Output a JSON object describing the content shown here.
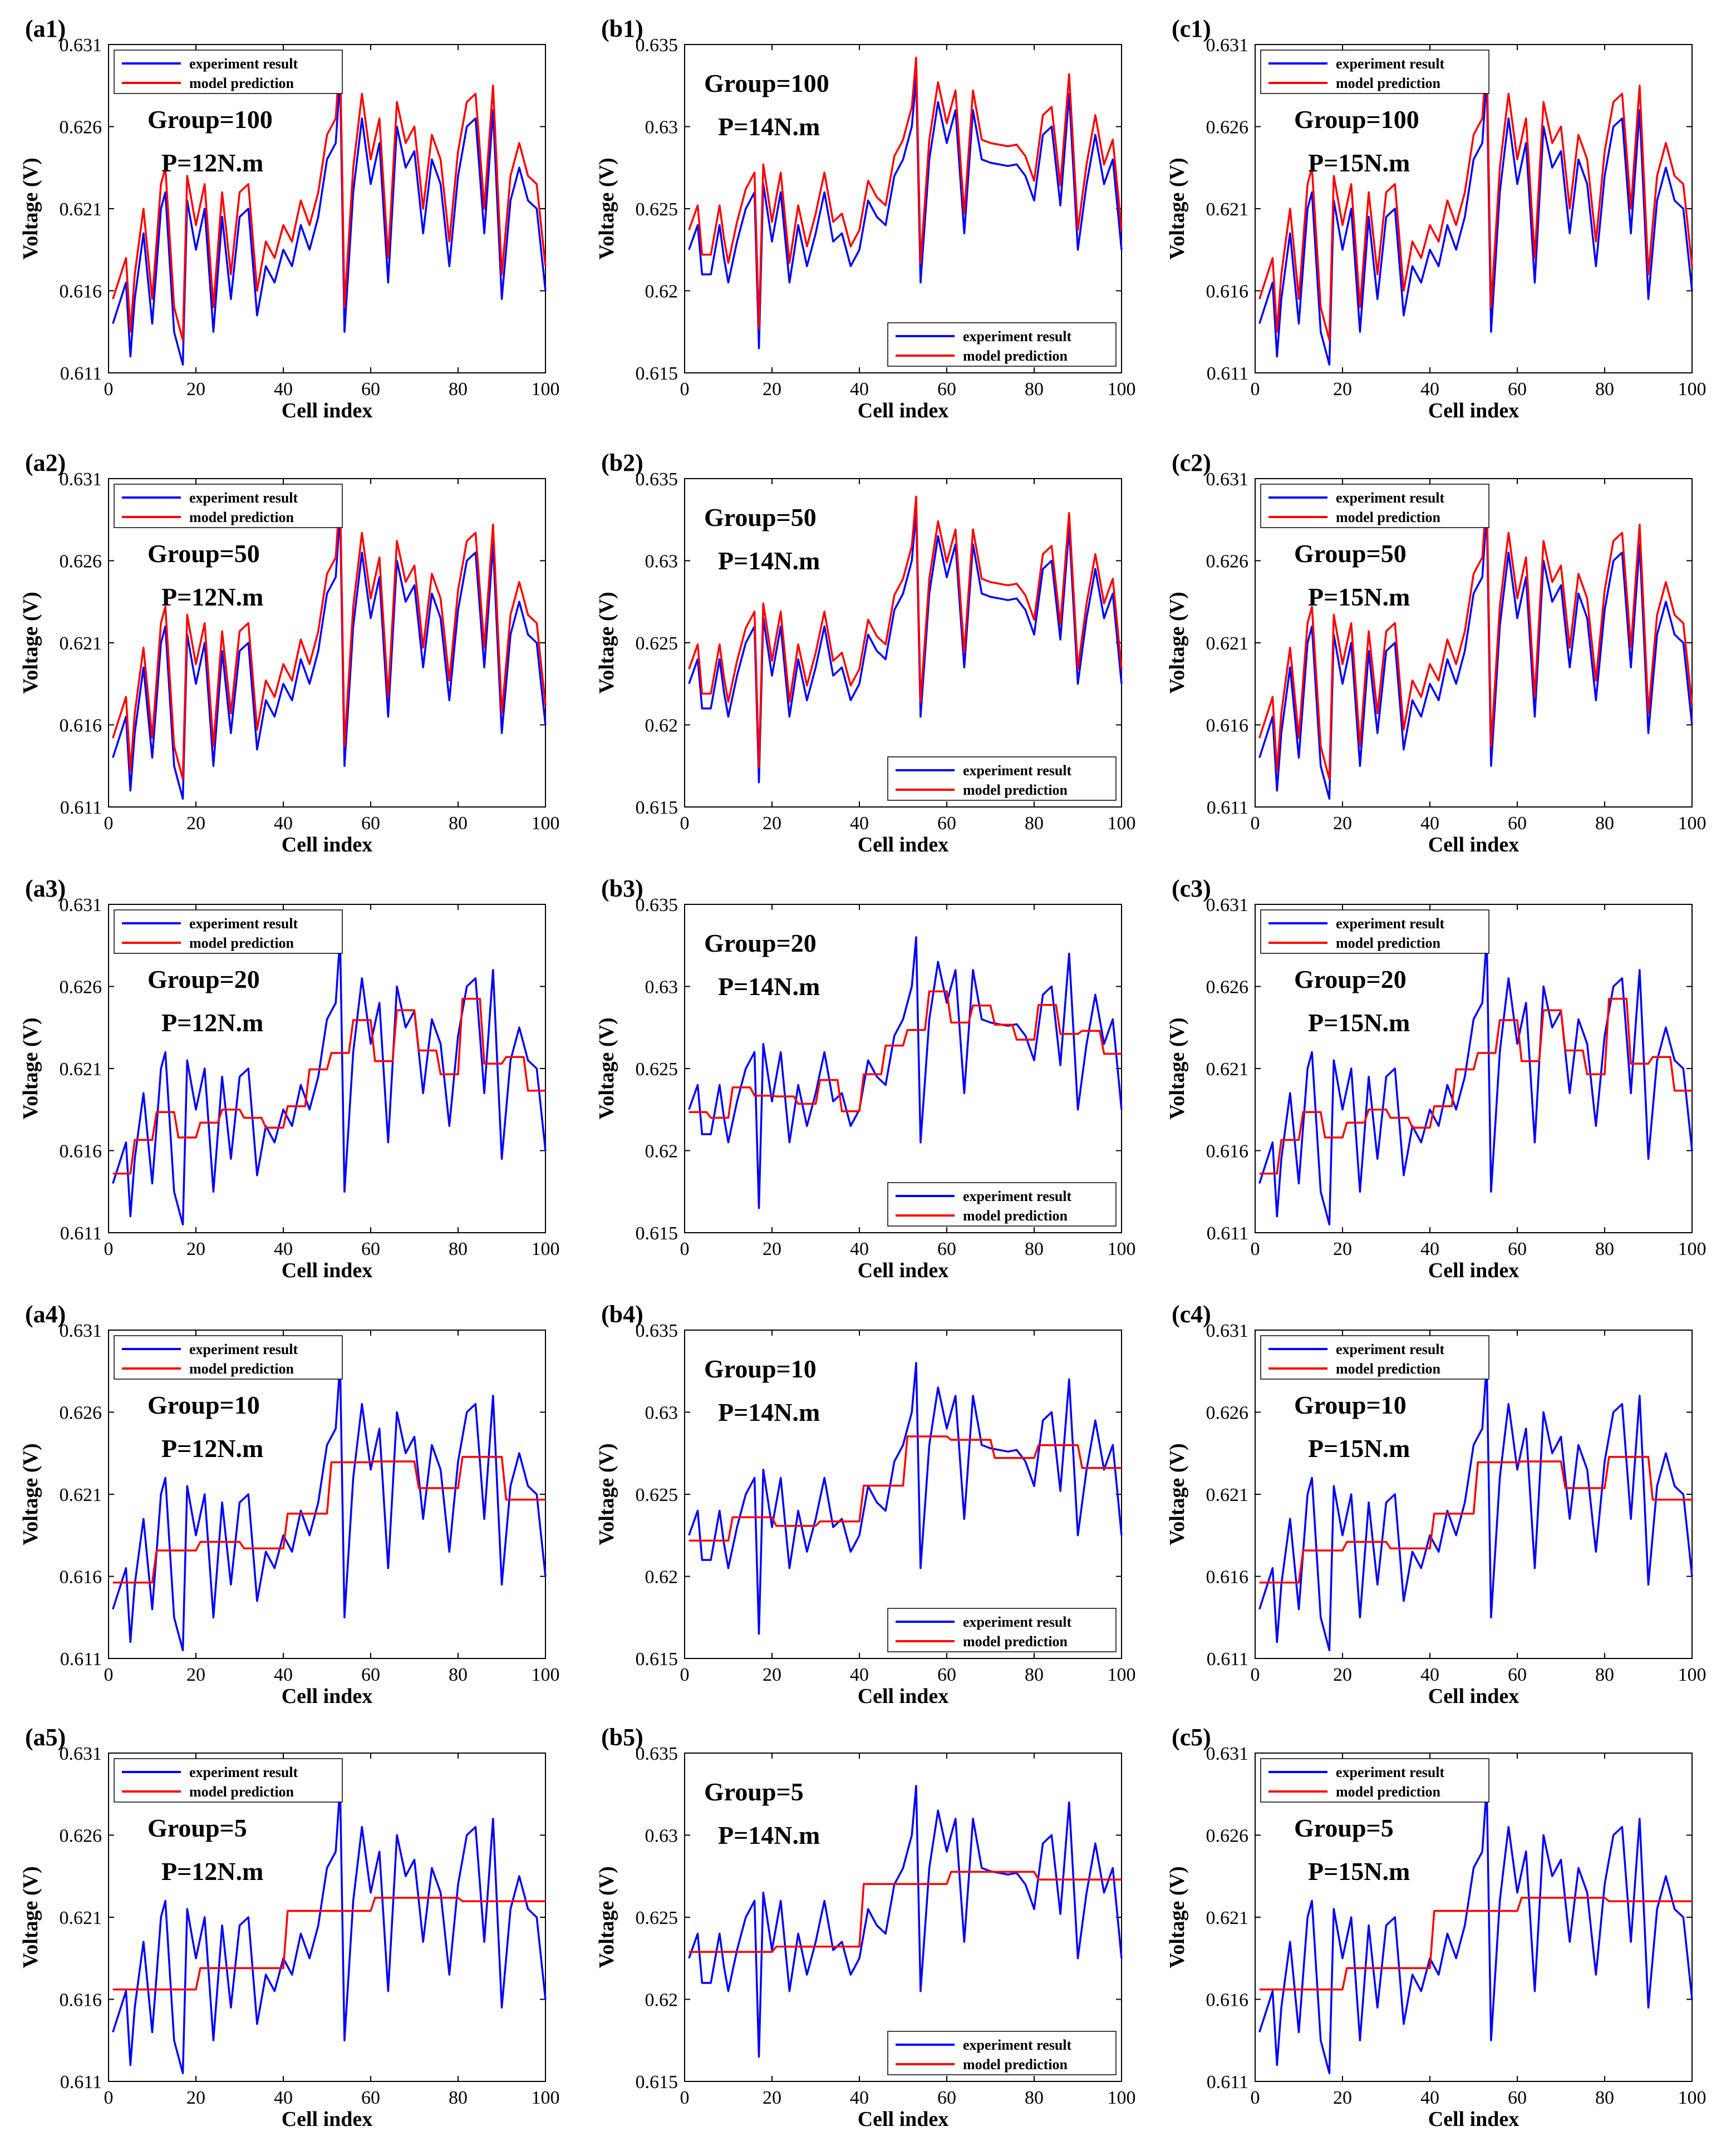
{
  "figure": {
    "series_names": [
      "experiment result",
      "model prediction"
    ],
    "series_colors": [
      "#0000ff",
      "#ff0000"
    ],
    "xlabel": "Cell index",
    "ylabel": "Voltage (V)"
  },
  "chart_data": [
    {
      "id": "a1",
      "panel_label": "(a1)",
      "type": "line",
      "group_label": "Group=100",
      "torque_label": "P=12N.m",
      "xlabel": "Cell index",
      "ylabel": "Voltage (V)",
      "xlim": [
        0,
        100
      ],
      "ylim": [
        0.611,
        0.631
      ],
      "x_ticks": [
        "0",
        "20",
        "40",
        "60",
        "80",
        "100"
      ],
      "y_ticks": [
        "0.611",
        "0.616",
        "0.621",
        "0.626",
        "0.631"
      ],
      "legend_position": "top-left",
      "model": "offset",
      "model_offset": 0.0015,
      "series": [
        {
          "name": "experiment result",
          "color": "#0000ff"
        },
        {
          "name": "model prediction",
          "color": "#ff0000"
        }
      ]
    },
    {
      "id": "b1",
      "panel_label": "(b1)",
      "type": "line",
      "group_label": "Group=100",
      "torque_label": "P=14N.m",
      "xlabel": "Cell index",
      "ylabel": "Voltage (V)",
      "xlim": [
        0,
        100
      ],
      "ylim": [
        0.615,
        0.635
      ],
      "x_ticks": [
        "0",
        "20",
        "40",
        "60",
        "80",
        "100"
      ],
      "y_ticks": [
        "0.615",
        "0.62",
        "0.625",
        "0.63",
        "0.635"
      ],
      "legend_position": "bottom-right",
      "model": "offset",
      "model_offset": 0.0012,
      "series": [
        {
          "name": "experiment result",
          "color": "#0000ff"
        },
        {
          "name": "model prediction",
          "color": "#ff0000"
        }
      ]
    },
    {
      "id": "c1",
      "panel_label": "(c1)",
      "type": "line",
      "group_label": "Group=100",
      "torque_label": "P=15N.m",
      "xlabel": "Cell index",
      "ylabel": "Voltage (V)",
      "xlim": [
        0,
        100
      ],
      "ylim": [
        0.611,
        0.631
      ],
      "x_ticks": [
        "0",
        "20",
        "40",
        "60",
        "80",
        "100"
      ],
      "y_ticks": [
        "0.611",
        "0.616",
        "0.621",
        "0.626",
        "0.631"
      ],
      "legend_position": "top-left",
      "model": "offset",
      "model_offset": 0.0015,
      "series": [
        {
          "name": "experiment result",
          "color": "#0000ff"
        },
        {
          "name": "model prediction",
          "color": "#ff0000"
        }
      ]
    },
    {
      "id": "a2",
      "panel_label": "(a2)",
      "type": "line",
      "group_label": "Group=50",
      "torque_label": "P=12N.m",
      "xlabel": "Cell index",
      "ylabel": "Voltage (V)",
      "xlim": [
        0,
        100
      ],
      "ylim": [
        0.611,
        0.631
      ],
      "x_ticks": [
        "0",
        "20",
        "40",
        "60",
        "80",
        "100"
      ],
      "y_ticks": [
        "0.611",
        "0.616",
        "0.621",
        "0.626",
        "0.631"
      ],
      "legend_position": "top-left",
      "model": "offset",
      "model_offset": 0.0012,
      "series": [
        {
          "name": "experiment result",
          "color": "#0000ff"
        },
        {
          "name": "model prediction",
          "color": "#ff0000"
        }
      ]
    },
    {
      "id": "b2",
      "panel_label": "(b2)",
      "type": "line",
      "group_label": "Group=50",
      "torque_label": "P=14N.m",
      "xlabel": "Cell index",
      "ylabel": "Voltage (V)",
      "xlim": [
        0,
        100
      ],
      "ylim": [
        0.615,
        0.635
      ],
      "x_ticks": [
        "0",
        "20",
        "40",
        "60",
        "80",
        "100"
      ],
      "y_ticks": [
        "0.615",
        "0.62",
        "0.625",
        "0.63",
        "0.635"
      ],
      "legend_position": "bottom-right",
      "model": "offset",
      "model_offset": 0.0009,
      "series": [
        {
          "name": "experiment result",
          "color": "#0000ff"
        },
        {
          "name": "model prediction",
          "color": "#ff0000"
        }
      ]
    },
    {
      "id": "c2",
      "panel_label": "(c2)",
      "type": "line",
      "group_label": "Group=50",
      "torque_label": "P=15N.m",
      "xlabel": "Cell index",
      "ylabel": "Voltage (V)",
      "xlim": [
        0,
        100
      ],
      "ylim": [
        0.611,
        0.631
      ],
      "x_ticks": [
        "0",
        "20",
        "40",
        "60",
        "80",
        "100"
      ],
      "y_ticks": [
        "0.611",
        "0.616",
        "0.621",
        "0.626",
        "0.631"
      ],
      "legend_position": "top-left",
      "model": "offset",
      "model_offset": 0.0012,
      "series": [
        {
          "name": "experiment result",
          "color": "#0000ff"
        },
        {
          "name": "model prediction",
          "color": "#ff0000"
        }
      ]
    },
    {
      "id": "a3",
      "panel_label": "(a3)",
      "type": "line",
      "group_label": "Group=20",
      "torque_label": "P=12N.m",
      "xlabel": "Cell index",
      "ylabel": "Voltage (V)",
      "xlim": [
        0,
        100
      ],
      "ylim": [
        0.611,
        0.631
      ],
      "x_ticks": [
        "0",
        "20",
        "40",
        "60",
        "80",
        "100"
      ],
      "y_ticks": [
        "0.611",
        "0.616",
        "0.621",
        "0.626",
        "0.631"
      ],
      "legend_position": "top-left",
      "model": "step",
      "block_size": 5,
      "series": [
        {
          "name": "experiment result",
          "color": "#0000ff"
        },
        {
          "name": "model prediction",
          "color": "#ff0000"
        }
      ]
    },
    {
      "id": "b3",
      "panel_label": "(b3)",
      "type": "line",
      "group_label": "Group=20",
      "torque_label": "P=14N.m",
      "xlabel": "Cell index",
      "ylabel": "Voltage (V)",
      "xlim": [
        0,
        100
      ],
      "ylim": [
        0.615,
        0.635
      ],
      "x_ticks": [
        "0",
        "20",
        "40",
        "60",
        "80",
        "100"
      ],
      "y_ticks": [
        "0.615",
        "0.62",
        "0.625",
        "0.63",
        "0.635"
      ],
      "legend_position": "bottom-right",
      "model": "step",
      "block_size": 5,
      "series": [
        {
          "name": "experiment result",
          "color": "#0000ff"
        },
        {
          "name": "model prediction",
          "color": "#ff0000"
        }
      ]
    },
    {
      "id": "c3",
      "panel_label": "(c3)",
      "type": "line",
      "group_label": "Group=20",
      "torque_label": "P=15N.m",
      "xlabel": "Cell index",
      "ylabel": "Voltage (V)",
      "xlim": [
        0,
        100
      ],
      "ylim": [
        0.611,
        0.631
      ],
      "x_ticks": [
        "0",
        "20",
        "40",
        "60",
        "80",
        "100"
      ],
      "y_ticks": [
        "0.611",
        "0.616",
        "0.621",
        "0.626",
        "0.631"
      ],
      "legend_position": "top-left",
      "model": "step",
      "block_size": 5,
      "series": [
        {
          "name": "experiment result",
          "color": "#0000ff"
        },
        {
          "name": "model prediction",
          "color": "#ff0000"
        }
      ]
    },
    {
      "id": "a4",
      "panel_label": "(a4)",
      "type": "line",
      "group_label": "Group=10",
      "torque_label": "P=12N.m",
      "xlabel": "Cell index",
      "ylabel": "Voltage (V)",
      "xlim": [
        0,
        100
      ],
      "ylim": [
        0.611,
        0.631
      ],
      "x_ticks": [
        "0",
        "20",
        "40",
        "60",
        "80",
        "100"
      ],
      "y_ticks": [
        "0.611",
        "0.616",
        "0.621",
        "0.626",
        "0.631"
      ],
      "legend_position": "top-left",
      "model": "step",
      "block_size": 10,
      "series": [
        {
          "name": "experiment result",
          "color": "#0000ff"
        },
        {
          "name": "model prediction",
          "color": "#ff0000"
        }
      ]
    },
    {
      "id": "b4",
      "panel_label": "(b4)",
      "type": "line",
      "group_label": "Group=10",
      "torque_label": "P=14N.m",
      "xlabel": "Cell index",
      "ylabel": "Voltage (V)",
      "xlim": [
        0,
        100
      ],
      "ylim": [
        0.615,
        0.635
      ],
      "x_ticks": [
        "0",
        "20",
        "40",
        "60",
        "80",
        "100"
      ],
      "y_ticks": [
        "0.615",
        "0.62",
        "0.625",
        "0.63",
        "0.635"
      ],
      "legend_position": "bottom-right",
      "model": "step",
      "block_size": 10,
      "series": [
        {
          "name": "experiment result",
          "color": "#0000ff"
        },
        {
          "name": "model prediction",
          "color": "#ff0000"
        }
      ]
    },
    {
      "id": "c4",
      "panel_label": "(c4)",
      "type": "line",
      "group_label": "Group=10",
      "torque_label": "P=15N.m",
      "xlabel": "Cell index",
      "ylabel": "Voltage (V)",
      "xlim": [
        0,
        100
      ],
      "ylim": [
        0.611,
        0.631
      ],
      "x_ticks": [
        "0",
        "20",
        "40",
        "60",
        "80",
        "100"
      ],
      "y_ticks": [
        "0.611",
        "0.616",
        "0.621",
        "0.626",
        "0.631"
      ],
      "legend_position": "top-left",
      "model": "step",
      "block_size": 10,
      "series": [
        {
          "name": "experiment result",
          "color": "#0000ff"
        },
        {
          "name": "model prediction",
          "color": "#ff0000"
        }
      ]
    },
    {
      "id": "a5",
      "panel_label": "(a5)",
      "type": "line",
      "group_label": "Group=5",
      "torque_label": "P=12N.m",
      "xlabel": "Cell index",
      "ylabel": "Voltage (V)",
      "xlim": [
        0,
        100
      ],
      "ylim": [
        0.611,
        0.631
      ],
      "x_ticks": [
        "0",
        "20",
        "40",
        "60",
        "80",
        "100"
      ],
      "y_ticks": [
        "0.611",
        "0.616",
        "0.621",
        "0.626",
        "0.631"
      ],
      "legend_position": "top-left",
      "model": "step",
      "block_size": 20,
      "series": [
        {
          "name": "experiment result",
          "color": "#0000ff"
        },
        {
          "name": "model prediction",
          "color": "#ff0000"
        }
      ]
    },
    {
      "id": "b5",
      "panel_label": "(b5)",
      "type": "line",
      "group_label": "Group=5",
      "torque_label": "P=14N.m",
      "xlabel": "Cell index",
      "ylabel": "Voltage (V)",
      "xlim": [
        0,
        100
      ],
      "ylim": [
        0.615,
        0.635
      ],
      "x_ticks": [
        "0",
        "20",
        "40",
        "60",
        "80",
        "100"
      ],
      "y_ticks": [
        "0.615",
        "0.62",
        "0.625",
        "0.63",
        "0.635"
      ],
      "legend_position": "bottom-right",
      "model": "step",
      "block_size": 20,
      "series": [
        {
          "name": "experiment result",
          "color": "#0000ff"
        },
        {
          "name": "model prediction",
          "color": "#ff0000"
        }
      ]
    },
    {
      "id": "c5",
      "panel_label": "(c5)",
      "type": "line",
      "group_label": "Group=5",
      "torque_label": "P=15N.m",
      "xlabel": "Cell index",
      "ylabel": "Voltage (V)",
      "xlim": [
        0,
        100
      ],
      "ylim": [
        0.611,
        0.631
      ],
      "x_ticks": [
        "0",
        "20",
        "40",
        "60",
        "80",
        "100"
      ],
      "y_ticks": [
        "0.611",
        "0.616",
        "0.621",
        "0.626",
        "0.631"
      ],
      "legend_position": "top-left",
      "model": "step",
      "block_size": 20,
      "series": [
        {
          "name": "experiment result",
          "color": "#0000ff"
        },
        {
          "name": "model prediction",
          "color": "#ff0000"
        }
      ]
    }
  ],
  "experiment_profiles": {
    "a": {
      "x": [
        1,
        4,
        5,
        6,
        8,
        10,
        12,
        13,
        15,
        17,
        18,
        20,
        22,
        24,
        26,
        28,
        30,
        32,
        34,
        36,
        38,
        40,
        42,
        44,
        46,
        48,
        50,
        52,
        53,
        54,
        56,
        58,
        60,
        62,
        64,
        66,
        68,
        70,
        72,
        74,
        76,
        78,
        80,
        82,
        84,
        86,
        88,
        90,
        92,
        94,
        96,
        98,
        100
      ],
      "y": [
        0.614,
        0.6165,
        0.612,
        0.6155,
        0.6195,
        0.614,
        0.621,
        0.622,
        0.6135,
        0.6115,
        0.6215,
        0.6185,
        0.621,
        0.6135,
        0.6205,
        0.6155,
        0.6205,
        0.621,
        0.6145,
        0.6175,
        0.6165,
        0.6185,
        0.6175,
        0.62,
        0.6185,
        0.6205,
        0.624,
        0.625,
        0.629,
        0.6135,
        0.622,
        0.6265,
        0.6225,
        0.625,
        0.6165,
        0.626,
        0.6235,
        0.6245,
        0.6195,
        0.624,
        0.6225,
        0.6175,
        0.623,
        0.626,
        0.6265,
        0.6195,
        0.627,
        0.6155,
        0.6215,
        0.6235,
        0.6215,
        0.621,
        0.616
      ]
    },
    "b": {
      "x": [
        1,
        3,
        4,
        6,
        8,
        9,
        10,
        12,
        14,
        16,
        17,
        18,
        20,
        22,
        24,
        26,
        28,
        30,
        32,
        34,
        36,
        38,
        40,
        42,
        44,
        46,
        48,
        50,
        52,
        53,
        54,
        56,
        58,
        60,
        62,
        64,
        66,
        68,
        70,
        72,
        74,
        76,
        78,
        80,
        82,
        84,
        86,
        88,
        90,
        92,
        94,
        96,
        98,
        100
      ],
      "y": [
        0.6225,
        0.624,
        0.621,
        0.621,
        0.624,
        0.622,
        0.6205,
        0.623,
        0.625,
        0.626,
        0.6165,
        0.6265,
        0.623,
        0.626,
        0.6205,
        0.624,
        0.6215,
        0.6235,
        0.626,
        0.623,
        0.6235,
        0.6215,
        0.6225,
        0.6255,
        0.6245,
        0.624,
        0.627,
        0.628,
        0.63,
        0.633,
        0.6205,
        0.628,
        0.6315,
        0.629,
        0.631,
        0.6235,
        0.631,
        0.628,
        0.6278,
        0.6277,
        0.6276,
        0.6277,
        0.627,
        0.6255,
        0.6295,
        0.63,
        0.6252,
        0.632,
        0.6225,
        0.6265,
        0.6295,
        0.6265,
        0.628,
        0.6225
      ]
    }
  }
}
